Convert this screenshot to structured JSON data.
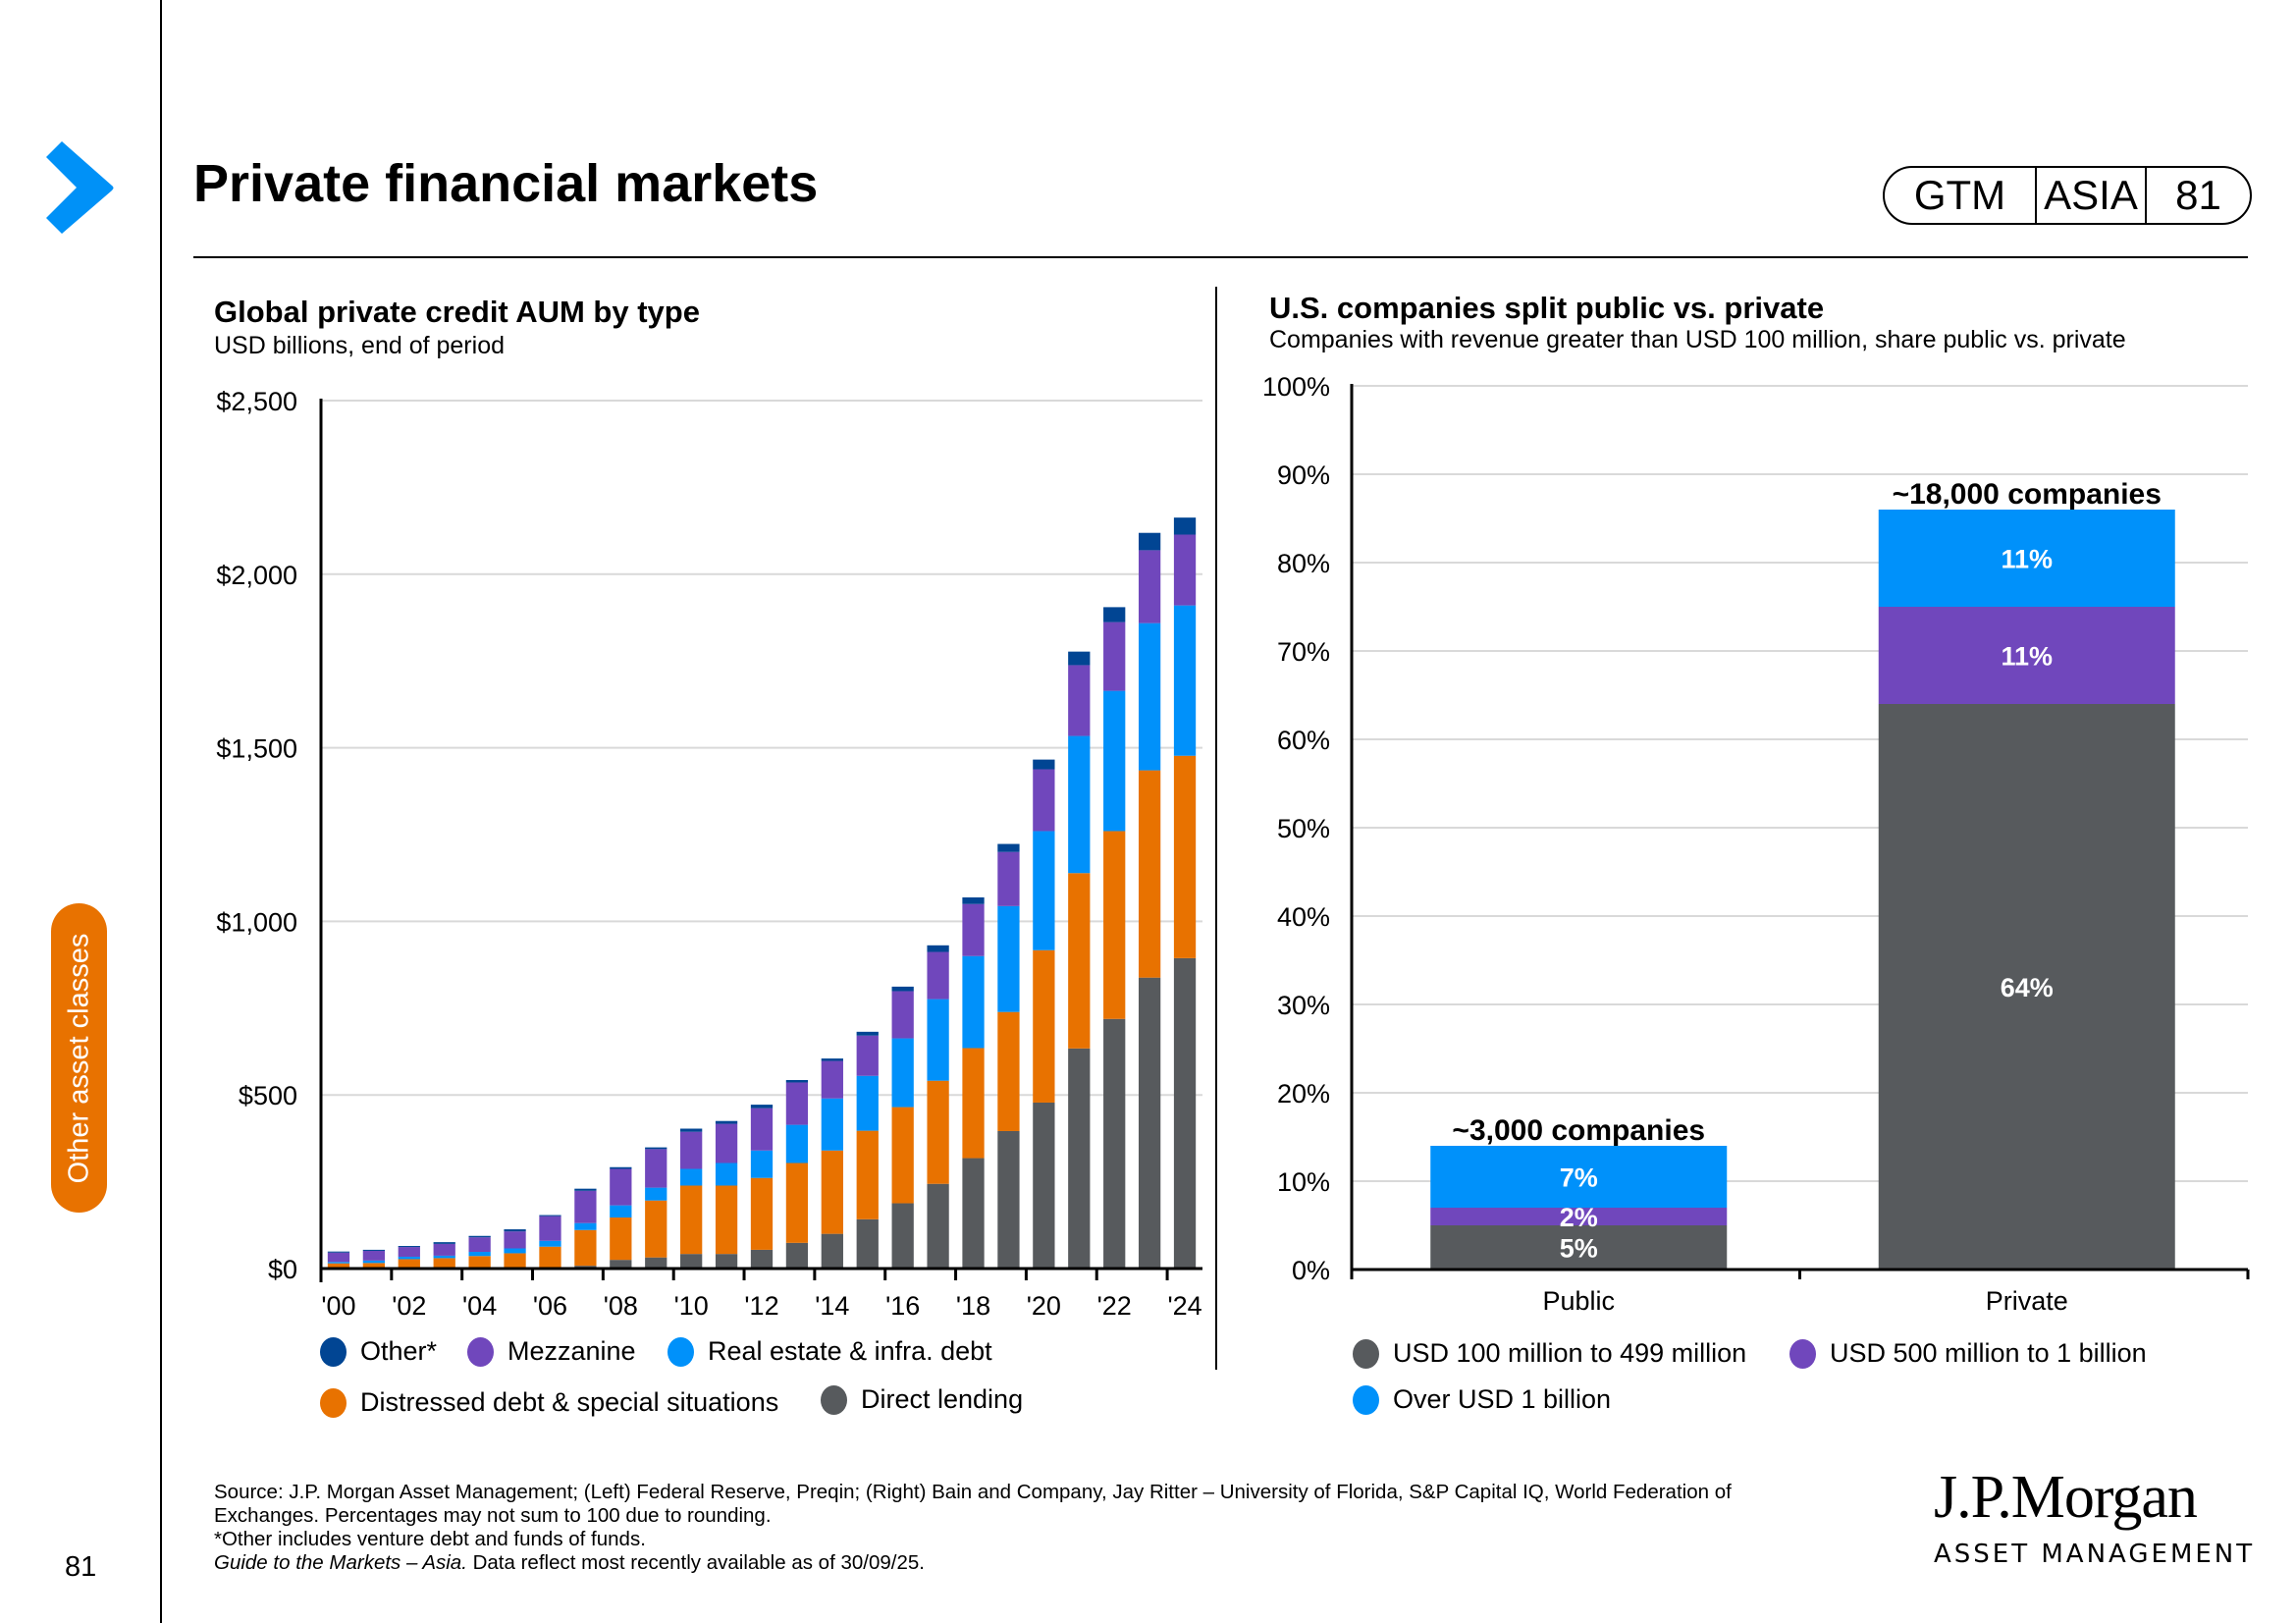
{
  "header": {
    "title": "Private financial markets",
    "badge": [
      "GTM",
      "ASIA",
      "81"
    ]
  },
  "sidebar": {
    "section_tab": "Other asset classes",
    "page_number": "81"
  },
  "colors": {
    "brand_blue": "#0091F7",
    "section_orange": "#E87200",
    "direct_lending": "#575A5D",
    "distressed": "#E87200",
    "real_estate": "#0091FA",
    "mezzanine": "#7047BC",
    "other": "#014593",
    "gridline": "#D9D9D9"
  },
  "chart_data": [
    {
      "type": "bar",
      "stacked": true,
      "title": "Global private credit AUM by type",
      "subtitle": "USD billions, end of period",
      "xlabel": "",
      "ylabel": "",
      "ylim": [
        0,
        2500
      ],
      "yticks": [
        0,
        500,
        1000,
        1500,
        2000,
        2500
      ],
      "ytick_labels": [
        "$0",
        "$500",
        "$1,000",
        "$1,500",
        "$2,000",
        "$2,500"
      ],
      "grid": true,
      "categories": [
        "2000",
        "2001",
        "2002",
        "2003",
        "2004",
        "2005",
        "2006",
        "2007",
        "2008",
        "2009",
        "2010",
        "2011",
        "2012",
        "2013",
        "2014",
        "2015",
        "2016",
        "2017",
        "2018",
        "2019",
        "2020",
        "2021",
        "2022",
        "2023",
        "2024"
      ],
      "xtick_labels": [
        "'00",
        "",
        "'02",
        "",
        "'04",
        "",
        "'06",
        "",
        "'08",
        "",
        "'10",
        "",
        "'12",
        "",
        "'14",
        "",
        "'16",
        "",
        "'18",
        "",
        "'20",
        "",
        "'22",
        "",
        "'24"
      ],
      "series": [
        {
          "name": "Direct lending",
          "color_key": "direct_lending",
          "values": [
            0,
            0,
            0,
            0,
            0,
            0,
            0,
            8,
            25,
            32,
            42,
            42,
            54,
            74,
            100,
            142,
            188,
            244,
            318,
            396,
            478,
            634,
            719,
            838,
            894
          ]
        },
        {
          "name": "Distressed debt & special situations",
          "color_key": "distressed",
          "values": [
            15,
            16,
            27,
            30,
            36,
            44,
            63,
            103,
            122,
            164,
            197,
            197,
            207,
            230,
            240,
            255,
            277,
            297,
            317,
            343,
            439,
            505,
            541,
            597,
            583
          ]
        },
        {
          "name": "Real estate & infra. debt",
          "color_key": "real_estate",
          "values": [
            4,
            7,
            7,
            7,
            12,
            14,
            17,
            20,
            35,
            37,
            48,
            65,
            79,
            110,
            150,
            158,
            198,
            235,
            265,
            305,
            343,
            395,
            404,
            424,
            433
          ]
        },
        {
          "name": "Mezzanine",
          "color_key": "mezzanine",
          "values": [
            27,
            28,
            28,
            34,
            42,
            49,
            71,
            93,
            105,
            111,
            107,
            113,
            122,
            122,
            108,
            116,
            136,
            136,
            150,
            156,
            178,
            204,
            198,
            210,
            204
          ]
        },
        {
          "name": "Other*",
          "color_key": "other",
          "values": [
            3,
            3,
            3,
            5,
            4,
            6,
            3,
            6,
            5,
            5,
            9,
            8,
            10,
            7,
            7,
            11,
            13,
            19,
            19,
            23,
            28,
            39,
            43,
            50,
            49
          ]
        }
      ],
      "legend": [
        {
          "label": "Other*",
          "color_key": "other"
        },
        {
          "label": "Mezzanine",
          "color_key": "mezzanine"
        },
        {
          "label": "Real estate & infra. debt",
          "color_key": "real_estate"
        },
        {
          "label": "Distressed debt & special situations",
          "color_key": "distressed"
        },
        {
          "label": "Direct lending",
          "color_key": "direct_lending"
        }
      ],
      "legend_position": "bottom"
    },
    {
      "type": "bar",
      "stacked": true,
      "title": "U.S. companies split public vs. private",
      "subtitle": "Companies with revenue greater than USD 100 million, share public vs. private",
      "xlabel": "",
      "ylabel": "",
      "ylim": [
        0,
        100
      ],
      "yticks": [
        0,
        10,
        20,
        30,
        40,
        50,
        60,
        70,
        80,
        90,
        100
      ],
      "ytick_labels": [
        "0%",
        "10%",
        "20%",
        "30%",
        "40%",
        "50%",
        "60%",
        "70%",
        "80%",
        "90%",
        "100%"
      ],
      "grid": true,
      "categories": [
        "Public",
        "Private"
      ],
      "series": [
        {
          "name": "USD 100 million to 499 million",
          "color_key": "direct_lending",
          "values": [
            5,
            64
          ],
          "labels": [
            "5%",
            "64%"
          ]
        },
        {
          "name": "USD 500 million to 1 billion",
          "color_key": "mezzanine",
          "values": [
            2,
            11
          ],
          "labels": [
            "2%",
            "11%"
          ]
        },
        {
          "name": "Over USD 1 billion",
          "color_key": "real_estate",
          "values": [
            7,
            11
          ],
          "labels": [
            "7%",
            "11%"
          ]
        }
      ],
      "totals_annotations": [
        "~3,000 companies",
        "~18,000 companies"
      ],
      "legend": [
        {
          "label": "USD 100 million to 499 million",
          "color_key": "direct_lending"
        },
        {
          "label": "USD 500 million to 1 billion",
          "color_key": "mezzanine"
        },
        {
          "label": "Over USD 1 billion",
          "color_key": "real_estate"
        }
      ],
      "legend_position": "bottom"
    }
  ],
  "footer": {
    "source": "Source: J.P. Morgan Asset Management; (Left) Federal Reserve, Preqin; (Right) Bain and Company, Jay Ritter – University of Florida, S&P Capital IQ, World Federation of",
    "source_cont": "Exchanges. Percentages may not sum to 100 due to rounding.",
    "other_note": "*Other includes venture debt and funds of funds.",
    "guide_italic": "Guide to the Markets – Asia.",
    "guide_rest": " Data reflect most recently available as of 30/09/25.",
    "logo_name": "J.P.Morgan",
    "logo_sub": "ASSET MANAGEMENT"
  }
}
